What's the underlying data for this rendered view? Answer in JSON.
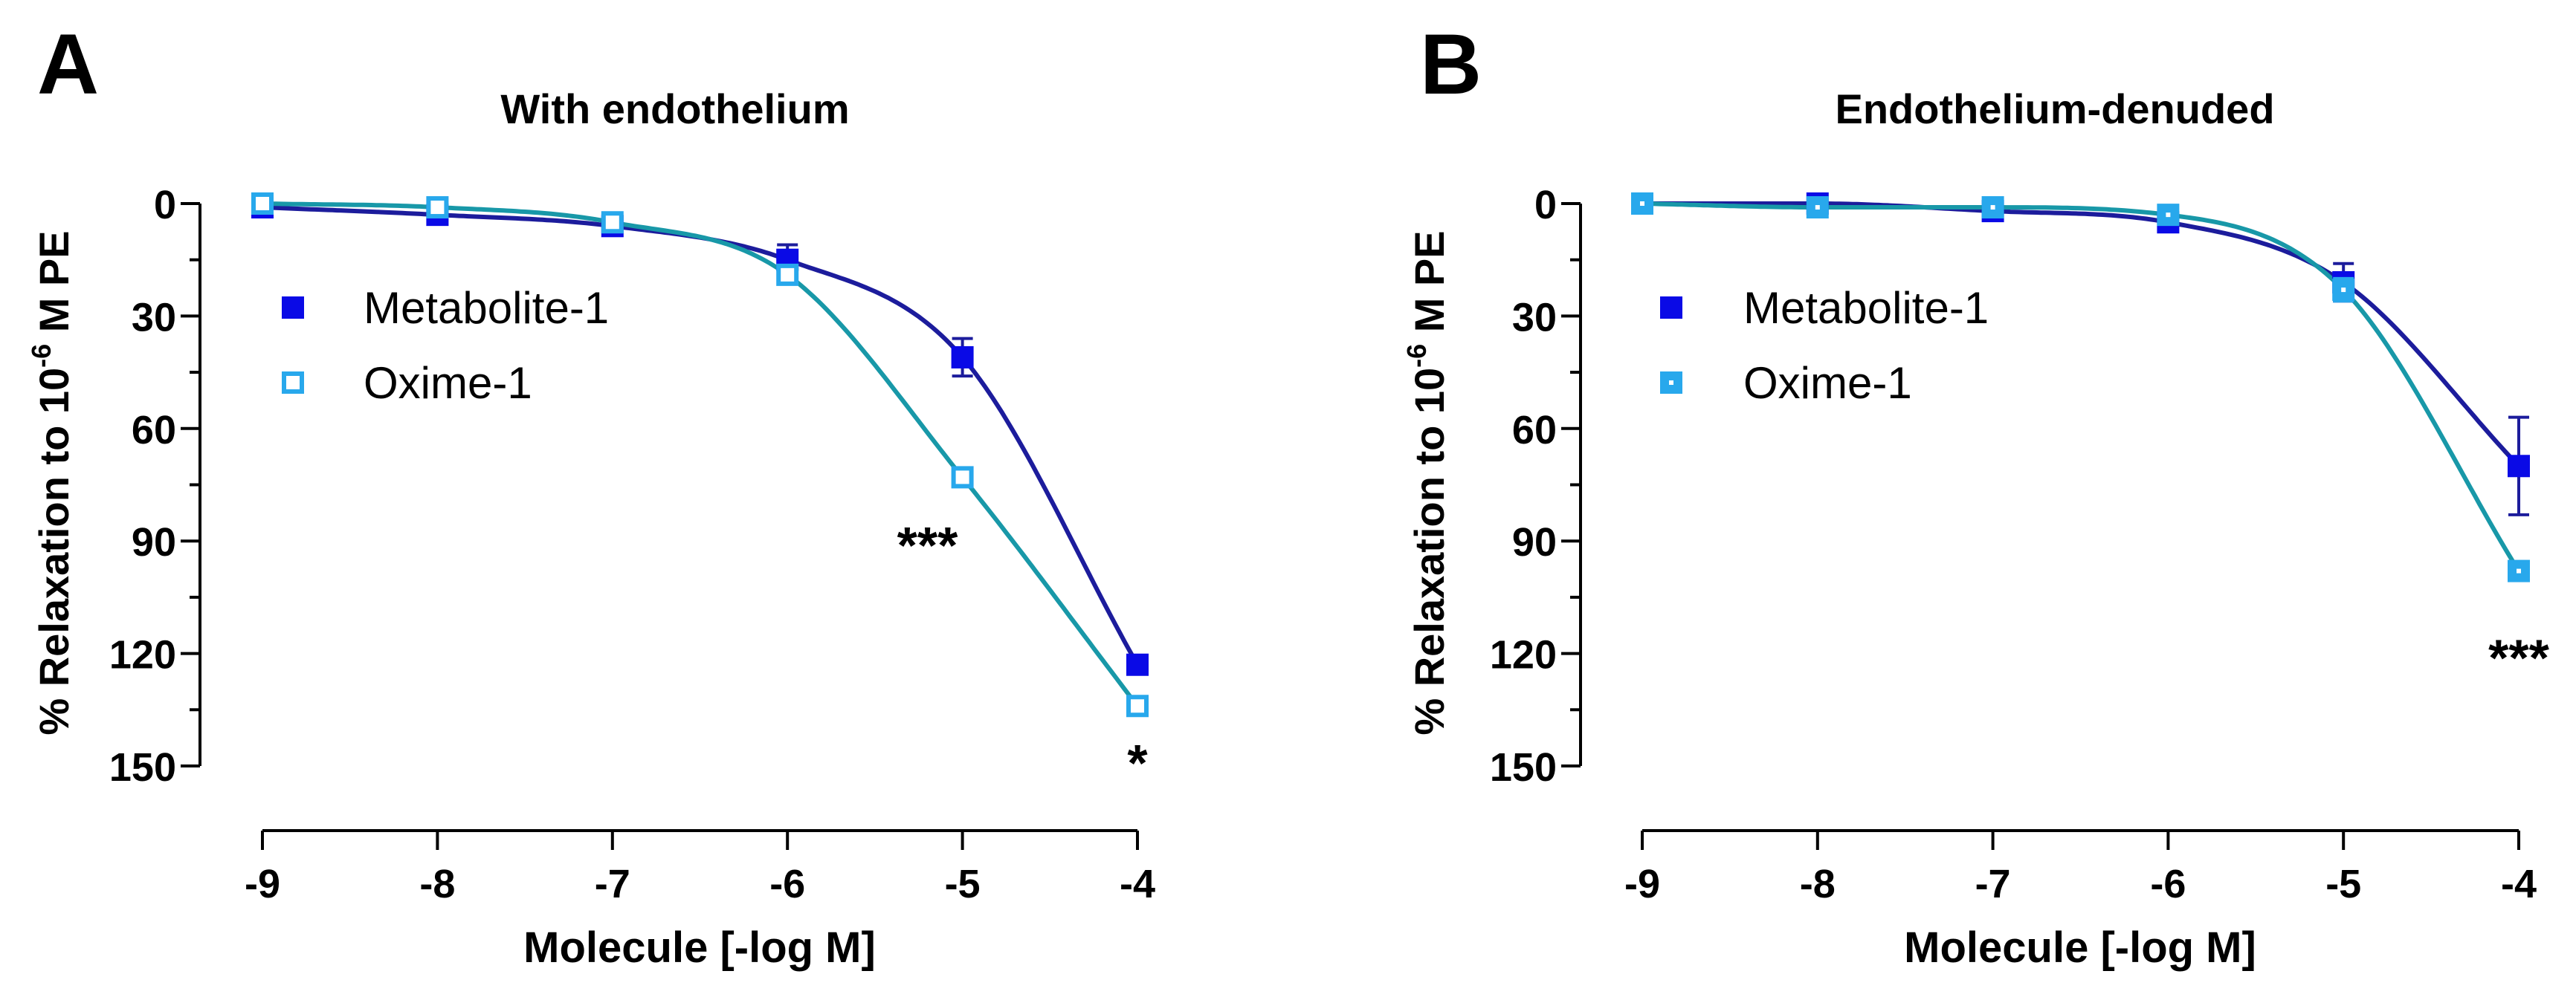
{
  "colors": {
    "metabolite_marker": "#0a0ae6",
    "metabolite_line": "#1c1c9c",
    "oxime_marker": "#28a8ec",
    "oxime_line": "#1898a8",
    "axis": "#000000"
  },
  "chart_data": [
    {
      "type": "line",
      "panel_label": "A",
      "title": "With endothelium",
      "xlabel": "Molecule [-log M]",
      "ylabel_prefix": "% Relaxation to 10",
      "ylabel_exp": "-6",
      "ylabel_suffix": " M PE",
      "xlim": [
        -9,
        -4
      ],
      "ylim": [
        0,
        150
      ],
      "y_inverted": true,
      "x_ticks": [
        "-9",
        "-8",
        "-7",
        "-6",
        "-5",
        "-4"
      ],
      "y_ticks": [
        "0",
        "30",
        "60",
        "90",
        "120",
        "150"
      ],
      "legend_position": "upper-left",
      "x": [
        -9,
        -8,
        -7,
        -6,
        -5,
        -4
      ],
      "series": [
        {
          "name": "Metabolite-1",
          "marker": "filled-square",
          "values": [
            1,
            3,
            6,
            15,
            41,
            123
          ],
          "errors": [
            1,
            2,
            2,
            4,
            5,
            2
          ]
        },
        {
          "name": "Oxime-1",
          "marker": "open-square",
          "values": [
            0,
            1,
            5,
            19,
            73,
            134
          ],
          "errors": [
            1,
            1,
            2,
            2,
            2,
            2
          ]
        }
      ],
      "annotations": [
        {
          "text": "***",
          "x": -5.2,
          "y": 88
        },
        {
          "text": "*",
          "x": -4,
          "y": 146
        }
      ]
    },
    {
      "type": "line",
      "panel_label": "B",
      "title": "Endothelium-denuded",
      "xlabel": "Molecule [-log M]",
      "ylabel_prefix": "% Relaxation to 10",
      "ylabel_exp": "-6",
      "ylabel_suffix": " M PE",
      "xlim": [
        -9,
        -4
      ],
      "ylim": [
        0,
        150
      ],
      "y_inverted": true,
      "x_ticks": [
        "-9",
        "-8",
        "-7",
        "-6",
        "-5",
        "-4"
      ],
      "y_ticks": [
        "0",
        "30",
        "60",
        "90",
        "120",
        "150"
      ],
      "legend_position": "upper-left",
      "x": [
        -9,
        -8,
        -7,
        -6,
        -5,
        -4
      ],
      "series": [
        {
          "name": "Metabolite-1",
          "marker": "filled-square",
          "values": [
            0,
            0,
            2,
            5,
            21,
            70
          ],
          "errors": [
            1,
            1,
            2,
            2,
            5,
            13
          ]
        },
        {
          "name": "Oxime-1",
          "marker": "open-square-thick",
          "values": [
            0,
            1,
            1,
            3,
            23,
            98
          ],
          "errors": [
            1,
            1,
            1,
            2,
            3,
            2
          ]
        }
      ],
      "annotations": [
        {
          "text": "***",
          "x": -4,
          "y": 118
        }
      ]
    }
  ]
}
